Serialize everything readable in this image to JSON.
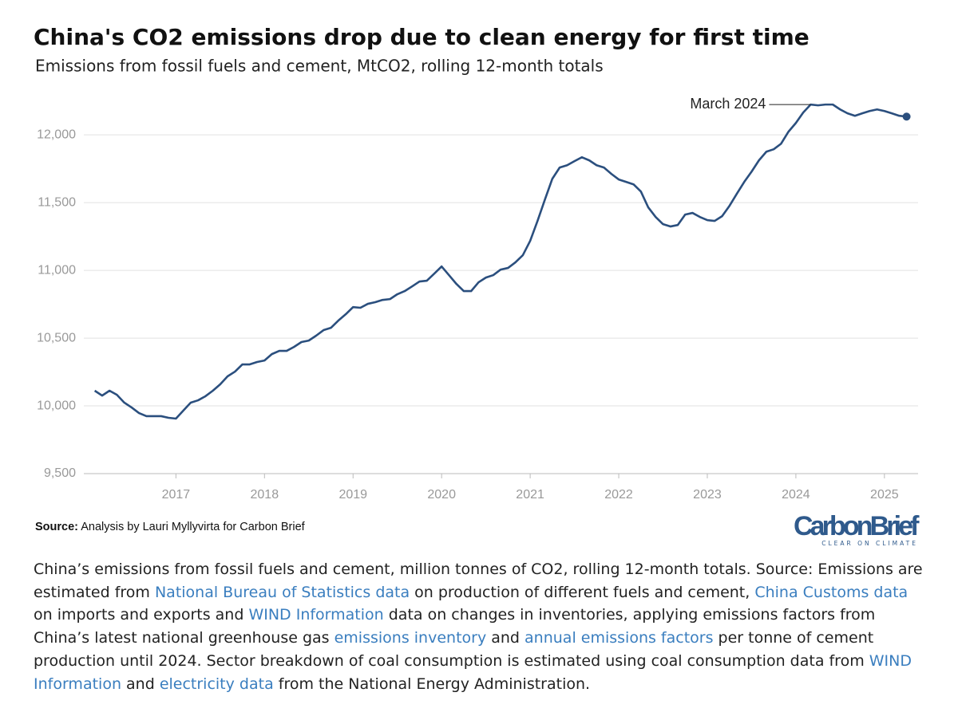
{
  "chart_data": {
    "type": "line",
    "title": "China's CO2 emissions drop due to clean energy for first time",
    "subtitle": "Emissions from fossil fuels and cement, MtCO2, rolling 12-month totals",
    "x": [
      2016.083,
      2016.167,
      2016.25,
      2016.333,
      2016.417,
      2016.5,
      2016.583,
      2016.667,
      2016.75,
      2016.833,
      2016.917,
      2017,
      2017.083,
      2017.167,
      2017.25,
      2017.333,
      2017.417,
      2017.5,
      2017.583,
      2017.667,
      2017.75,
      2017.833,
      2017.917,
      2018,
      2018.083,
      2018.167,
      2018.25,
      2018.333,
      2018.417,
      2018.5,
      2018.583,
      2018.667,
      2018.75,
      2018.833,
      2018.917,
      2019,
      2019.083,
      2019.167,
      2019.25,
      2019.333,
      2019.417,
      2019.5,
      2019.583,
      2019.667,
      2019.75,
      2019.833,
      2019.917,
      2020,
      2020.083,
      2020.167,
      2020.25,
      2020.333,
      2020.417,
      2020.5,
      2020.583,
      2020.667,
      2020.75,
      2020.833,
      2020.917,
      2021,
      2021.083,
      2021.167,
      2021.25,
      2021.333,
      2021.417,
      2021.5,
      2021.583,
      2021.667,
      2021.75,
      2021.833,
      2021.917,
      2022,
      2022.083,
      2022.167,
      2022.25,
      2022.333,
      2022.417,
      2022.5,
      2022.583,
      2022.667,
      2022.75,
      2022.833,
      2022.917,
      2023,
      2023.083,
      2023.167,
      2023.25,
      2023.333,
      2023.417,
      2023.5,
      2023.583,
      2023.667,
      2023.75,
      2023.833,
      2023.917,
      2024,
      2024.083,
      2024.167,
      2024.25,
      2024.333,
      2024.417,
      2024.5,
      2024.583,
      2024.667,
      2024.75,
      2024.833,
      2024.917,
      2025,
      2025.083,
      2025.167,
      2025.25
    ],
    "series": [
      {
        "name": "Emissions",
        "color": "#2b4f7e",
        "values": [
          10112,
          10076,
          10112,
          10082,
          10024,
          9988,
          9947,
          9924,
          9924,
          9924,
          9912,
          9906,
          9965,
          10024,
          10041,
          10071,
          10112,
          10159,
          10218,
          10253,
          10306,
          10306,
          10324,
          10335,
          10382,
          10406,
          10406,
          10435,
          10471,
          10482,
          10518,
          10559,
          10576,
          10629,
          10676,
          10729,
          10724,
          10753,
          10765,
          10782,
          10788,
          10824,
          10847,
          10882,
          10918,
          10924,
          10976,
          11029,
          10965,
          10900,
          10847,
          10847,
          10912,
          10947,
          10965,
          11006,
          11018,
          11059,
          11112,
          11218,
          11365,
          11524,
          11676,
          11759,
          11776,
          11806,
          11835,
          11812,
          11776,
          11759,
          11712,
          11671,
          11653,
          11635,
          11582,
          11465,
          11394,
          11341,
          11324,
          11335,
          11412,
          11424,
          11394,
          11371,
          11365,
          11400,
          11476,
          11565,
          11653,
          11729,
          11812,
          11876,
          11894,
          11935,
          12024,
          12088,
          12165,
          12224,
          12218,
          12224,
          12224,
          12188,
          12159,
          12141,
          12159,
          12176,
          12188,
          12176,
          12159,
          12141,
          12135
        ]
      }
    ],
    "xlim": [
      2015.96,
      2025.38
    ],
    "xticks": [
      2017,
      2018,
      2019,
      2020,
      2021,
      2022,
      2023,
      2024,
      2025
    ],
    "ylim": [
      9500,
      12260
    ],
    "yticks": [
      {
        "value": 9500,
        "label": "9,500"
      },
      {
        "value": 10000,
        "label": "10,000"
      },
      {
        "value": 10500,
        "label": "10,500"
      },
      {
        "value": 11000,
        "label": "11,000"
      },
      {
        "value": 11500,
        "label": "11,500"
      },
      {
        "value": 12000,
        "label": "12,000"
      }
    ],
    "grid": true,
    "annotation": {
      "text": "March 2024",
      "x": 2024.167
    },
    "source_label": "Source:",
    "source": "Analysis by Lauri Myllyvirta for Carbon Brief",
    "logo": {
      "name": "CarbonBrief",
      "tagline": "CLEAR ON CLIMATE"
    },
    "caption": [
      {
        "text": "China’s emissions from fossil fuels and cement, million tonnes of CO2, rolling 12-month totals. Source: Emissions are estimated from ",
        "link": false
      },
      {
        "text": "National Bureau of Statistics data",
        "link": true
      },
      {
        "text": " on production of different fuels and cement, ",
        "link": false
      },
      {
        "text": "China Customs data",
        "link": true
      },
      {
        "text": " on imports and exports and ",
        "link": false
      },
      {
        "text": "WIND Information",
        "link": true
      },
      {
        "text": " data on changes in inventories, applying emissions factors from China’s latest national greenhouse gas ",
        "link": false
      },
      {
        "text": "emissions inventory",
        "link": true
      },
      {
        "text": " and ",
        "link": false
      },
      {
        "text": "annual emissions factors",
        "link": true
      },
      {
        "text": " per tonne of cement production until 2024. Sector breakdown of coal consumption is estimated using coal consumption data from ",
        "link": false
      },
      {
        "text": "WIND Information",
        "link": true
      },
      {
        "text": " and ",
        "link": false
      },
      {
        "text": "electricity data",
        "link": true
      },
      {
        "text": " from the National Energy Administration.",
        "link": false
      }
    ]
  }
}
